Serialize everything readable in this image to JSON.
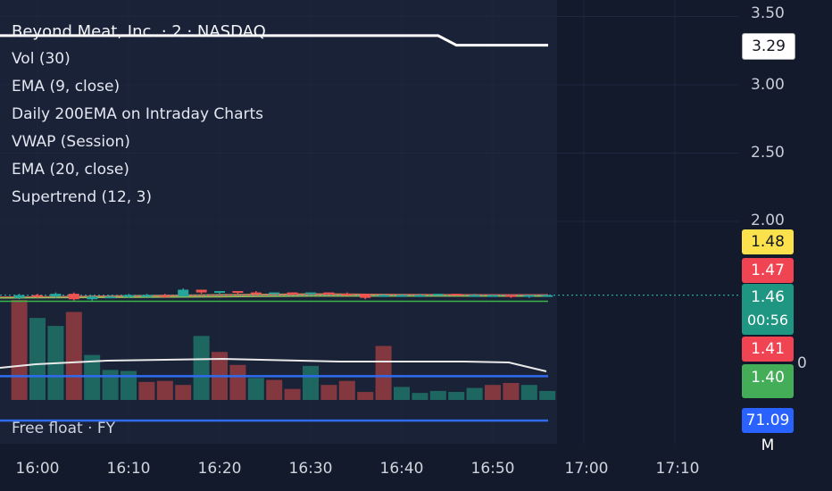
{
  "legend": {
    "symbol_title": "Beyond Meat, Inc. · 2 · NASDAQ",
    "indicators": [
      "Vol (30)",
      "EMA (9, close)",
      "Daily 200EMA on Intraday Charts",
      "VWAP (Session)",
      "EMA (20, close)",
      "Supertrend (12, 3)"
    ]
  },
  "free_float_label": "Free float · FY",
  "free_float_value": "71.09 M",
  "y_axis": {
    "ticks": [
      "3.50",
      "3.00",
      "2.50",
      "2.00"
    ],
    "partial_tick": "0"
  },
  "x_axis": {
    "ticks": [
      "16:00",
      "16:10",
      "16:20",
      "16:30",
      "16:40",
      "16:50",
      "17:00",
      "17:10"
    ]
  },
  "price_tags": [
    {
      "value": "3.29",
      "bg": "#ffffff",
      "fg": "#131722"
    },
    {
      "value": "1.48",
      "bg": "#fbe14b",
      "fg": "#131722"
    },
    {
      "value": "1.47",
      "bg": "#f04452",
      "fg": "#ffffff"
    },
    {
      "value": "1.46",
      "bg": "#1e9681",
      "fg": "#ffffff"
    },
    {
      "value": "1.41",
      "bg": "#f04452",
      "fg": "#ffffff"
    },
    {
      "value": "1.40",
      "bg": "#43ad58",
      "fg": "#ffffff"
    }
  ],
  "countdown": "00:56",
  "colors": {
    "up": "#26a69a",
    "down": "#ef5350",
    "background": "#131a2b",
    "highlight": "#1a2238"
  },
  "chart_data": {
    "type": "candlestick",
    "x_range": [
      "15:58",
      "17:16"
    ],
    "ylim": [
      1.1,
      3.55
    ],
    "last_price": 1.46,
    "daily_200ema": 3.29,
    "candles": [
      {
        "t": "15:58",
        "o": 1.44,
        "h": 1.47,
        "l": 1.43,
        "c": 1.46
      },
      {
        "t": "16:00",
        "o": 1.46,
        "h": 1.47,
        "l": 1.44,
        "c": 1.45
      },
      {
        "t": "16:02",
        "o": 1.45,
        "h": 1.48,
        "l": 1.44,
        "c": 1.47
      },
      {
        "t": "16:04",
        "o": 1.47,
        "h": 1.48,
        "l": 1.42,
        "c": 1.43
      },
      {
        "t": "16:06",
        "o": 1.43,
        "h": 1.46,
        "l": 1.42,
        "c": 1.45
      },
      {
        "t": "16:08",
        "o": 1.45,
        "h": 1.46,
        "l": 1.44,
        "c": 1.45
      },
      {
        "t": "16:10",
        "o": 1.45,
        "h": 1.47,
        "l": 1.44,
        "c": 1.46
      },
      {
        "t": "16:12",
        "o": 1.46,
        "h": 1.47,
        "l": 1.45,
        "c": 1.46
      },
      {
        "t": "16:14",
        "o": 1.46,
        "h": 1.47,
        "l": 1.44,
        "c": 1.45
      },
      {
        "t": "16:16",
        "o": 1.45,
        "h": 1.51,
        "l": 1.45,
        "c": 1.5
      },
      {
        "t": "16:18",
        "o": 1.5,
        "h": 1.5,
        "l": 1.47,
        "c": 1.48
      },
      {
        "t": "16:20",
        "o": 1.48,
        "h": 1.49,
        "l": 1.47,
        "c": 1.49
      },
      {
        "t": "16:22",
        "o": 1.49,
        "h": 1.49,
        "l": 1.47,
        "c": 1.48
      },
      {
        "t": "16:24",
        "o": 1.48,
        "h": 1.49,
        "l": 1.47,
        "c": 1.47
      },
      {
        "t": "16:26",
        "o": 1.47,
        "h": 1.48,
        "l": 1.47,
        "c": 1.48
      },
      {
        "t": "16:28",
        "o": 1.48,
        "h": 1.48,
        "l": 1.47,
        "c": 1.47
      },
      {
        "t": "16:30",
        "o": 1.47,
        "h": 1.48,
        "l": 1.46,
        "c": 1.48
      },
      {
        "t": "16:32",
        "o": 1.48,
        "h": 1.48,
        "l": 1.47,
        "c": 1.47
      },
      {
        "t": "16:34",
        "o": 1.47,
        "h": 1.48,
        "l": 1.46,
        "c": 1.46
      },
      {
        "t": "16:36",
        "o": 1.47,
        "h": 1.47,
        "l": 1.43,
        "c": 1.44
      },
      {
        "t": "16:38",
        "o": 1.45,
        "h": 1.47,
        "l": 1.45,
        "c": 1.46
      },
      {
        "t": "16:40",
        "o": 1.46,
        "h": 1.47,
        "l": 1.45,
        "c": 1.46
      },
      {
        "t": "16:42",
        "o": 1.46,
        "h": 1.47,
        "l": 1.46,
        "c": 1.46
      },
      {
        "t": "16:44",
        "o": 1.46,
        "h": 1.47,
        "l": 1.46,
        "c": 1.47
      },
      {
        "t": "16:46",
        "o": 1.47,
        "h": 1.47,
        "l": 1.46,
        "c": 1.46
      },
      {
        "t": "16:48",
        "o": 1.46,
        "h": 1.47,
        "l": 1.46,
        "c": 1.46
      },
      {
        "t": "16:50",
        "o": 1.46,
        "h": 1.46,
        "l": 1.45,
        "c": 1.46
      },
      {
        "t": "16:52",
        "o": 1.46,
        "h": 1.46,
        "l": 1.44,
        "c": 1.45
      },
      {
        "t": "16:54",
        "o": 1.45,
        "h": 1.46,
        "l": 1.44,
        "c": 1.46
      },
      {
        "t": "16:56",
        "o": 1.46,
        "h": 1.46,
        "l": 1.45,
        "c": 1.46
      }
    ],
    "volume": {
      "max": 100,
      "bars": [
        {
          "t": "15:58",
          "v": 100,
          "dir": "down"
        },
        {
          "t": "16:00",
          "v": 82,
          "dir": "up"
        },
        {
          "t": "16:02",
          "v": 74,
          "dir": "up"
        },
        {
          "t": "16:04",
          "v": 88,
          "dir": "down"
        },
        {
          "t": "16:06",
          "v": 45,
          "dir": "up"
        },
        {
          "t": "16:08",
          "v": 30,
          "dir": "up"
        },
        {
          "t": "16:10",
          "v": 29,
          "dir": "up"
        },
        {
          "t": "16:12",
          "v": 18,
          "dir": "down"
        },
        {
          "t": "16:14",
          "v": 19,
          "dir": "down"
        },
        {
          "t": "16:16",
          "v": 15,
          "dir": "down"
        },
        {
          "t": "16:18",
          "v": 64,
          "dir": "up"
        },
        {
          "t": "16:20",
          "v": 48,
          "dir": "down"
        },
        {
          "t": "16:22",
          "v": 35,
          "dir": "down"
        },
        {
          "t": "16:24",
          "v": 22,
          "dir": "up"
        },
        {
          "t": "16:26",
          "v": 20,
          "dir": "down"
        },
        {
          "t": "16:28",
          "v": 11,
          "dir": "down"
        },
        {
          "t": "16:30",
          "v": 34,
          "dir": "up"
        },
        {
          "t": "16:32",
          "v": 15,
          "dir": "down"
        },
        {
          "t": "16:34",
          "v": 19,
          "dir": "down"
        },
        {
          "t": "16:36",
          "v": 8,
          "dir": "down"
        },
        {
          "t": "16:38",
          "v": 54,
          "dir": "down"
        },
        {
          "t": "16:40",
          "v": 13,
          "dir": "up"
        },
        {
          "t": "16:42",
          "v": 7,
          "dir": "up"
        },
        {
          "t": "16:44",
          "v": 9,
          "dir": "up"
        },
        {
          "t": "16:46",
          "v": 8,
          "dir": "up"
        },
        {
          "t": "16:48",
          "v": 12,
          "dir": "up"
        },
        {
          "t": "16:50",
          "v": 15,
          "dir": "down"
        },
        {
          "t": "16:52",
          "v": 17,
          "dir": "down"
        },
        {
          "t": "16:54",
          "v": 15,
          "dir": "up"
        },
        {
          "t": "16:56",
          "v": 9,
          "dir": "up"
        }
      ]
    },
    "lines": [
      {
        "name": "Daily 200EMA on Intraday Charts",
        "color": "#ffffff",
        "points": [
          [
            "15:58",
            3.36
          ],
          [
            "16:44",
            3.36
          ],
          [
            "16:46",
            3.29
          ],
          [
            "16:56",
            3.29
          ]
        ]
      },
      {
        "name": "EMA (9, close)",
        "color": "#e3b24a",
        "points": [
          [
            "15:58",
            1.44
          ],
          [
            "16:10",
            1.455
          ],
          [
            "16:20",
            1.462
          ],
          [
            "16:30",
            1.468
          ],
          [
            "16:40",
            1.464
          ],
          [
            "16:50",
            1.462
          ],
          [
            "16:56",
            1.461
          ]
        ]
      },
      {
        "name": "EMA (20, close)",
        "color": "#e05a55",
        "points": [
          [
            "15:58",
            1.445
          ],
          [
            "16:10",
            1.452
          ],
          [
            "16:20",
            1.458
          ],
          [
            "16:30",
            1.463
          ],
          [
            "16:40",
            1.463
          ],
          [
            "16:50",
            1.462
          ],
          [
            "16:56",
            1.462
          ]
        ]
      },
      {
        "name": "VWAP (Session)",
        "color": "#8fbf5a",
        "points": [
          [
            "15:58",
            1.44
          ],
          [
            "16:20",
            1.448
          ],
          [
            "16:30",
            1.454
          ],
          [
            "16:56",
            1.453
          ]
        ]
      },
      {
        "name": "Supertrend (12, 3)",
        "color": "#3ab54a",
        "points": [
          [
            "15:58",
            1.415
          ],
          [
            "16:56",
            1.415
          ]
        ]
      }
    ],
    "overlay_lines": [
      {
        "color": "#2f6bef",
        "level": 0.56
      },
      {
        "color": "#2f6bef",
        "level": 0.03
      }
    ]
  }
}
